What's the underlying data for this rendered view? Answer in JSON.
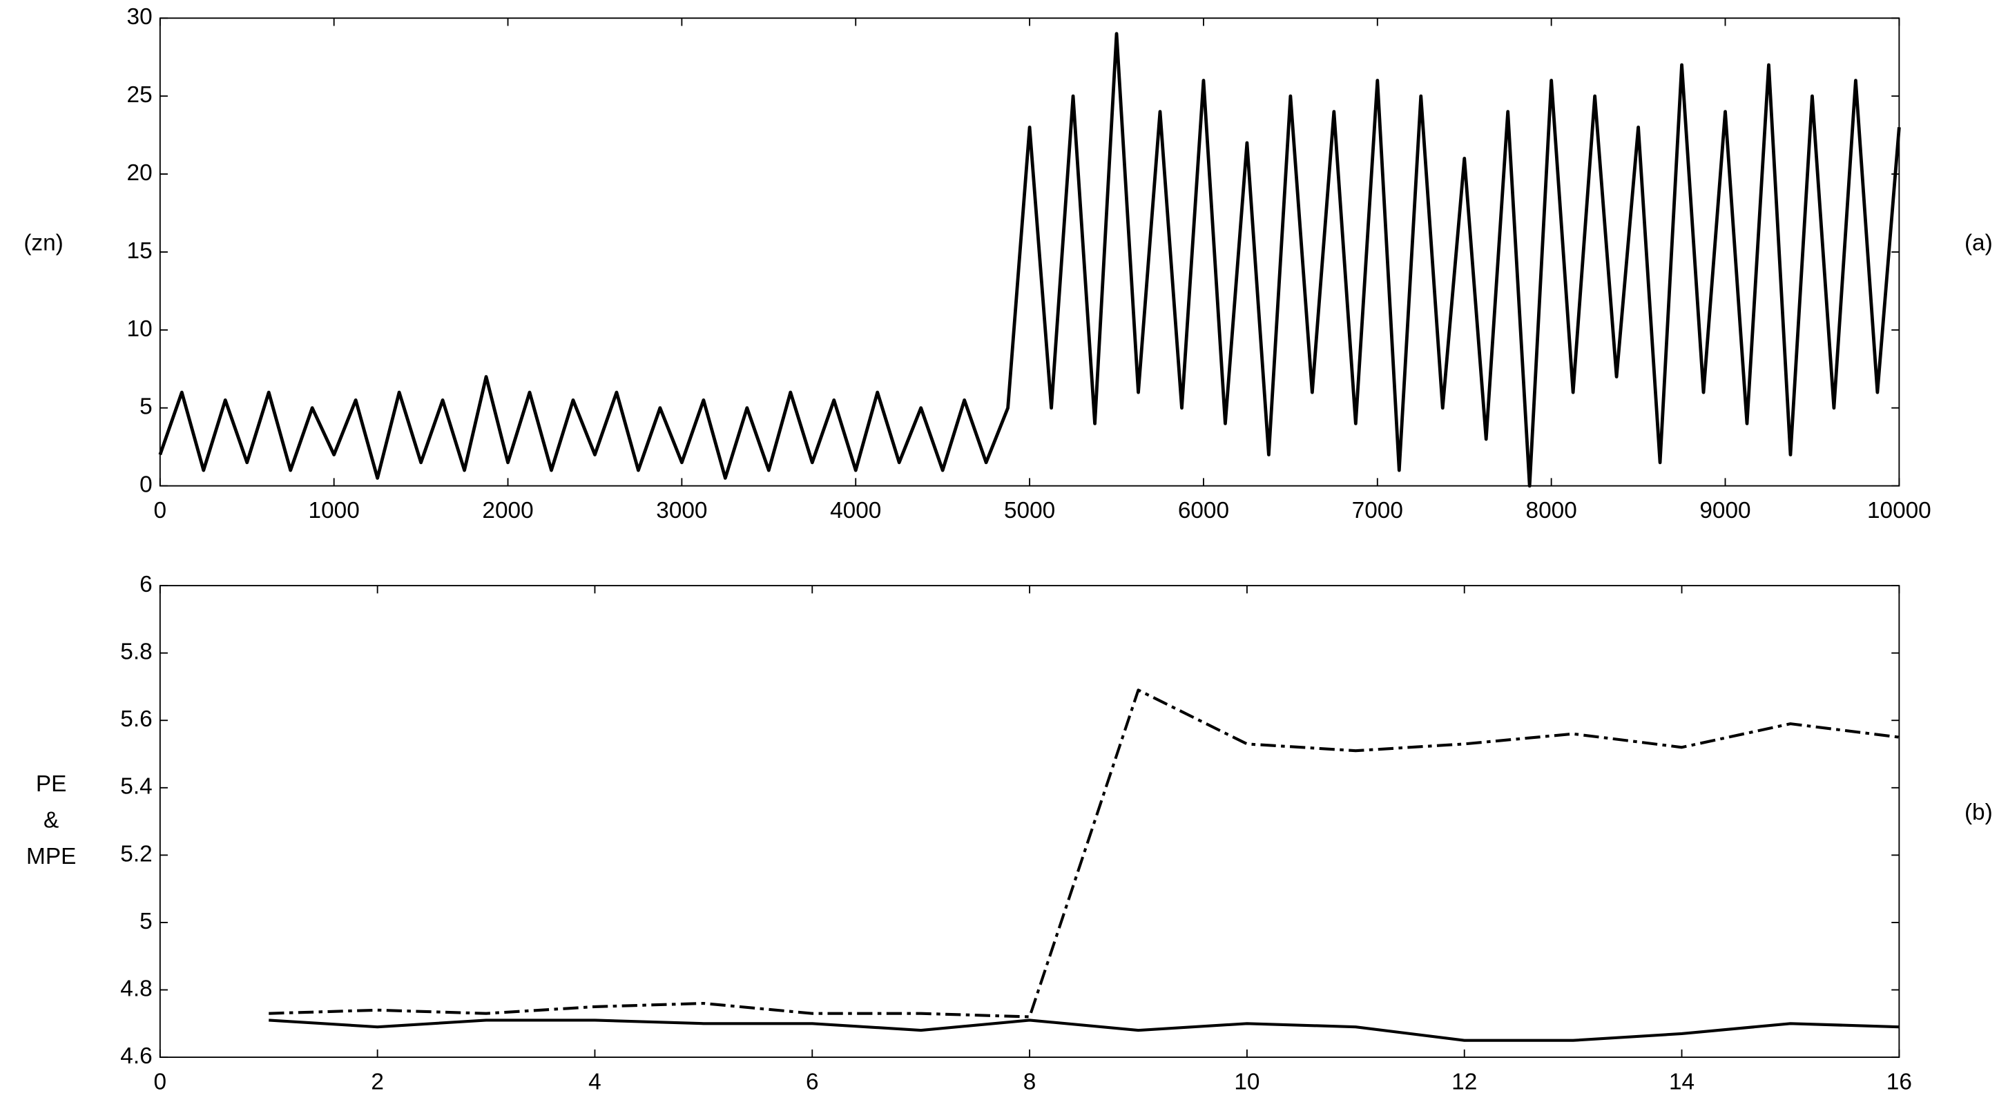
{
  "chart_data": [
    {
      "type": "line",
      "ylabel": "(zn)",
      "panel_label": "(a)",
      "x": [
        0,
        125,
        250,
        375,
        500,
        625,
        750,
        875,
        1000,
        1125,
        1250,
        1375,
        1500,
        1625,
        1750,
        1875,
        2000,
        2125,
        2250,
        2375,
        2500,
        2625,
        2750,
        2875,
        3000,
        3125,
        3250,
        3375,
        3500,
        3625,
        3750,
        3875,
        4000,
        4125,
        4250,
        4375,
        4500,
        4625,
        4750,
        4875,
        5000,
        5125,
        5250,
        5375,
        5500,
        5625,
        5750,
        5875,
        6000,
        6125,
        6250,
        6375,
        6500,
        6625,
        6750,
        6875,
        7000,
        7125,
        7250,
        7375,
        7500,
        7625,
        7750,
        7875,
        8000,
        8125,
        8250,
        8375,
        8500,
        8625,
        8750,
        8875,
        9000,
        9125,
        9250,
        9375,
        9500,
        9625,
        9750,
        9875,
        10000
      ],
      "series": [
        {
          "color": "#000000",
          "style": "solid",
          "values": [
            2,
            6,
            1,
            5.5,
            1.5,
            6,
            1,
            5,
            2,
            5.5,
            0.5,
            6,
            1.5,
            5.5,
            1,
            7,
            1.5,
            6,
            1,
            5.5,
            2,
            6,
            1,
            5,
            1.5,
            5.5,
            0.5,
            5,
            1,
            6,
            1.5,
            5.5,
            1,
            6,
            1.5,
            5,
            1,
            5.5,
            1.5,
            5,
            23,
            5,
            25,
            4,
            29,
            6,
            24,
            5,
            26,
            4,
            22,
            2,
            25,
            6,
            24,
            4,
            26,
            1,
            25,
            5,
            21,
            3,
            24,
            0,
            26,
            6,
            25,
            7,
            23,
            1.5,
            27,
            6,
            24,
            4,
            27,
            2,
            25,
            5,
            26,
            6,
            23
          ]
        }
      ],
      "xlim": [
        0,
        10000
      ],
      "xticks": [
        0,
        1000,
        2000,
        3000,
        4000,
        5000,
        6000,
        7000,
        8000,
        9000,
        10000
      ],
      "ylim": [
        0,
        30
      ],
      "yticks": [
        0,
        5,
        10,
        15,
        20,
        25,
        30
      ],
      "grid": false
    },
    {
      "type": "line",
      "ylabel": [
        "PE",
        "&",
        "MPE"
      ],
      "panel_label": "(b)",
      "x": [
        1,
        2,
        3,
        4,
        5,
        6,
        7,
        8,
        9,
        10,
        11,
        12,
        13,
        14,
        15,
        16
      ],
      "series": [
        {
          "color": "#000000",
          "style": "dash-dot",
          "values": [
            4.73,
            4.74,
            4.73,
            4.75,
            4.76,
            4.73,
            4.73,
            4.72,
            5.69,
            5.53,
            5.51,
            5.53,
            5.56,
            5.52,
            5.59,
            5.55
          ]
        },
        {
          "color": "#000000",
          "style": "solid",
          "values": [
            4.71,
            4.69,
            4.71,
            4.71,
            4.7,
            4.7,
            4.68,
            4.71,
            4.68,
            4.7,
            4.69,
            4.65,
            4.65,
            4.67,
            4.7,
            4.69
          ]
        }
      ],
      "xlim": [
        0,
        16
      ],
      "xticks": [
        0,
        2,
        4,
        6,
        8,
        10,
        12,
        14,
        16
      ],
      "ylim": [
        4.6,
        6
      ],
      "yticks": [
        4.6,
        4.8,
        5,
        5.2,
        5.4,
        5.6,
        5.8,
        6
      ],
      "grid": false
    }
  ]
}
